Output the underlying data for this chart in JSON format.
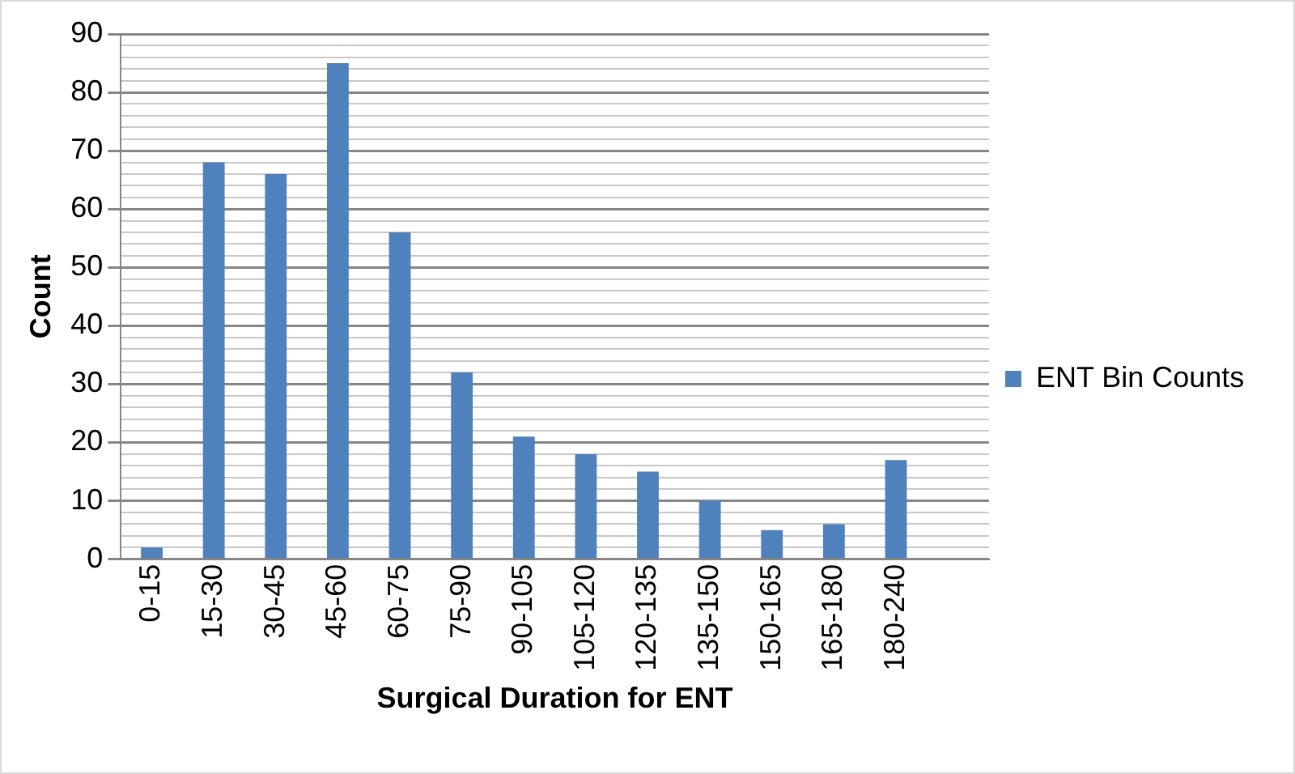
{
  "chart_data": {
    "type": "bar",
    "xlabel": "Surgical Duration for ENT",
    "ylabel": "Count",
    "categories": [
      "0-15",
      "15-30",
      "30-45",
      "45-60",
      "60-75",
      "75-90",
      "90-105",
      "105-120",
      "120-135",
      "135-150",
      "150-165",
      "165-180",
      "180-240",
      null
    ],
    "series": [
      {
        "name": "ENT Bin Counts",
        "color": "#4f81bd",
        "values": [
          2,
          68,
          66,
          85,
          56,
          32,
          21,
          18,
          15,
          10,
          5,
          6,
          17,
          null
        ]
      }
    ],
    "ylim": [
      0,
      90
    ],
    "yticks": [
      0,
      {
        "value": 2,
        "label": null
      },
      {
        "value": 4,
        "label": null
      },
      {
        "value": 6,
        "label": null
      },
      {
        "value": 8,
        "label": null
      },
      10,
      {
        "value": 12,
        "label": null
      },
      {
        "value": 14,
        "label": null
      },
      {
        "value": 16,
        "label": null
      },
      {
        "value": 18,
        "label": null
      },
      20,
      {
        "value": 22,
        "label": null
      },
      {
        "value": 24,
        "label": null
      },
      {
        "value": 26,
        "label": null
      },
      {
        "value": 28,
        "label": null
      },
      30,
      {
        "value": 32,
        "label": null
      },
      {
        "value": 34,
        "label": null
      },
      {
        "value": 36,
        "label": null
      },
      {
        "value": 38,
        "label": null
      },
      40,
      {
        "value": 42,
        "label": null
      },
      {
        "value": 44,
        "label": null
      },
      {
        "value": 46,
        "label": null
      },
      {
        "value": 48,
        "label": null
      },
      50,
      {
        "value": 52,
        "label": null
      },
      {
        "value": 54,
        "label": null
      },
      {
        "value": 56,
        "label": null
      },
      {
        "value": 58,
        "label": null
      },
      60,
      {
        "value": 62,
        "label": null
      },
      {
        "value": 64,
        "label": null
      },
      {
        "value": 66,
        "label": null
      },
      {
        "value": 68,
        "label": null
      },
      70,
      {
        "value": 72,
        "label": null
      },
      {
        "value": 74,
        "label": null
      },
      {
        "value": 76,
        "label": null
      },
      {
        "value": 78,
        "label": null
      },
      80,
      {
        "value": 82,
        "label": null
      },
      {
        "value": 84,
        "label": null
      },
      {
        "value": 86,
        "label": null
      },
      {
        "value": 88,
        "label": null
      },
      90
    ],
    "grid": "y",
    "legend": "right"
  }
}
